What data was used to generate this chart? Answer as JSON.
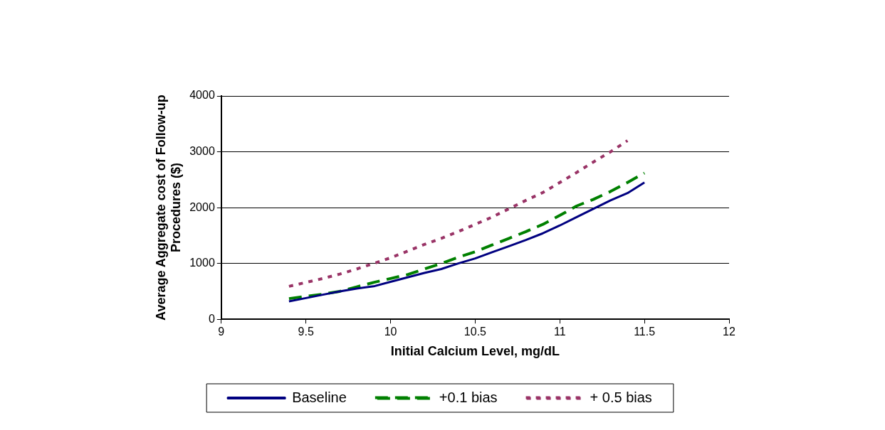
{
  "chart_data": {
    "type": "line",
    "xlabel": "Initial Calcium Level, mg/dL",
    "ylabel": "Average Aggregate cost of Follow-up Procedures ($)",
    "x": [
      9.4,
      9.5,
      9.6,
      9.7,
      9.8,
      9.9,
      10.0,
      10.1,
      10.2,
      10.3,
      10.4,
      10.5,
      10.6,
      10.7,
      10.8,
      10.9,
      11.0,
      11.1,
      11.2,
      11.3,
      11.4,
      11.5
    ],
    "series": [
      {
        "name": "Baseline",
        "color": "#000080",
        "line_style": "solid",
        "values": [
          320,
          380,
          440,
          500,
          550,
          590,
          670,
          750,
          830,
          900,
          1000,
          1090,
          1200,
          1310,
          1420,
          1540,
          1680,
          1830,
          1980,
          2130,
          2260,
          2450
        ]
      },
      {
        "name": "+0.1 bias",
        "color": "#008000",
        "line_style": "dashed",
        "values": [
          370,
          410,
          450,
          500,
          580,
          660,
          730,
          800,
          900,
          1000,
          1110,
          1210,
          1330,
          1450,
          1570,
          1700,
          1860,
          2030,
          2150,
          2290,
          2450,
          2620
        ]
      },
      {
        "name": "+ 0.5 bias",
        "color": "#993366",
        "line_style": "dotted",
        "values": [
          590,
          660,
          730,
          810,
          900,
          1000,
          1100,
          1220,
          1340,
          1450,
          1570,
          1700,
          1830,
          1980,
          2130,
          2270,
          2450,
          2630,
          2820,
          3000,
          3200,
          null
        ]
      }
    ],
    "xlim": [
      9,
      12
    ],
    "xticks": [
      9,
      9.5,
      10,
      10.5,
      11,
      11.5,
      12
    ],
    "ylim": [
      0,
      4000
    ],
    "yticks": [
      0,
      1000,
      2000,
      3000,
      4000
    ],
    "grid": "y",
    "legend": "bottom",
    "marker": "none"
  }
}
